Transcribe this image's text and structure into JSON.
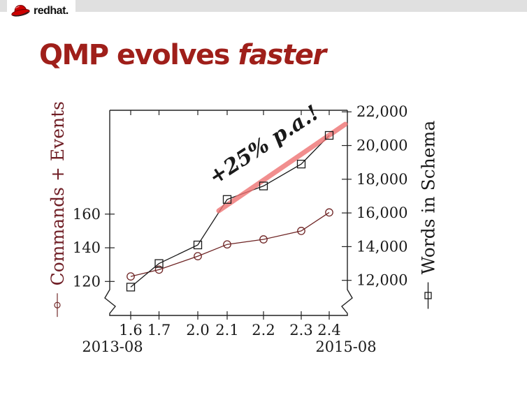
{
  "header": {
    "logo": {
      "brand_bold": "red",
      "brand_rest": "hat."
    }
  },
  "title": {
    "text": "QMP evolves ",
    "emphasis": "faster"
  },
  "chart_data": {
    "type": "line",
    "categories": [
      "1.6",
      "1.7",
      "2.0",
      "2.1",
      "2.2",
      "2.3",
      "2.4"
    ],
    "x_range_labels": {
      "start": "2013-08",
      "end": "2015-08"
    },
    "left_axis": {
      "label": "Commands + Events",
      "color": "#701f26",
      "marker": "circle",
      "ticks": [
        {
          "value": 120,
          "label": "120"
        },
        {
          "value": 140,
          "label": "140"
        },
        {
          "value": 160,
          "label": "160"
        }
      ]
    },
    "right_axis": {
      "label": "Words in Schema",
      "color": "#1a1a1a",
      "marker": "square",
      "ticks": [
        {
          "value": 12000,
          "label": "12,000"
        },
        {
          "value": 14000,
          "label": "14,000"
        },
        {
          "value": 16000,
          "label": "16,000"
        },
        {
          "value": 18000,
          "label": "18,000"
        },
        {
          "value": 20000,
          "label": "20,000"
        },
        {
          "value": 22000,
          "label": "22,000"
        }
      ]
    },
    "series": [
      {
        "name": "Commands + Events",
        "axis": "left",
        "marker": "circle",
        "color": "#6e2424",
        "values": [
          123,
          127,
          135,
          142,
          145,
          150,
          161
        ]
      },
      {
        "name": "Words in Schema",
        "axis": "right",
        "marker": "square",
        "color": "#1a1a1a",
        "values": [
          11600,
          13000,
          14100,
          16800,
          17600,
          18900,
          20600
        ]
      }
    ],
    "annotation": {
      "text": "+25% p.a.!",
      "color": "#cc1111"
    },
    "trend_line": {
      "color": "#ee7373"
    },
    "axis_break": true,
    "grid": false,
    "legend_position": "axis-titles"
  }
}
